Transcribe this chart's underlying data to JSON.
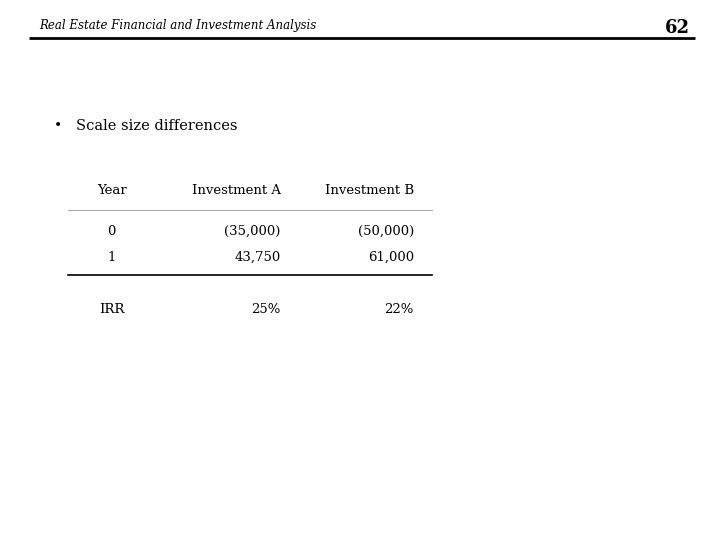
{
  "header_title": "Real Estate Financial and Investment Analysis",
  "header_page": "62",
  "bullet_text": "Scale size differences",
  "table_headers": [
    "Year",
    "Investment A",
    "Investment B"
  ],
  "table_rows": [
    [
      "0",
      "(35,000)",
      "(50,000)"
    ],
    [
      "1",
      "43,750",
      "61,000"
    ]
  ],
  "irr_row": [
    "IRR",
    "25%",
    "22%"
  ],
  "bg_color": "#ffffff",
  "text_color": "#000000",
  "header_line_color": "#000000",
  "table_line_color": "#aaaaaa"
}
